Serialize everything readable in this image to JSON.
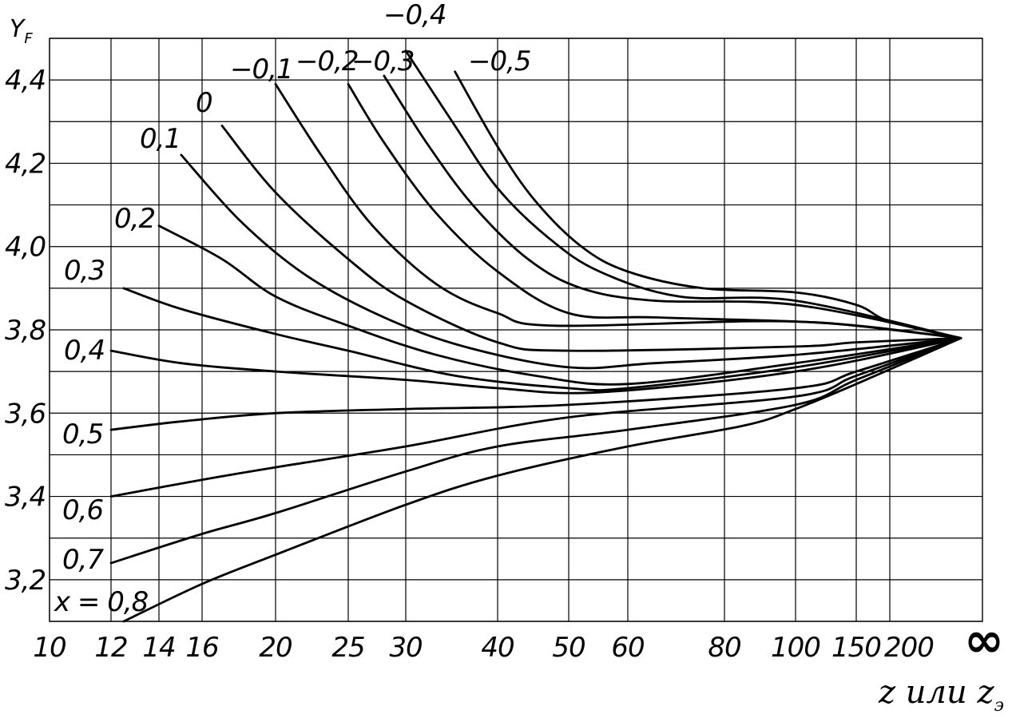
{
  "chart_data": {
    "type": "line",
    "title": "",
    "ylabel": "Y",
    "ylabel_sub": "F",
    "xlabel": "z или z",
    "xlabel_sub": "э",
    "x_scale": "log",
    "x_ticks": [
      "10",
      "12",
      "14",
      "16",
      "20",
      "25",
      "30",
      "40",
      "50",
      "60",
      "80",
      "100",
      "150",
      "200",
      "∞"
    ],
    "y_ticks": [
      "3,2",
      "3,4",
      "3,6",
      "3,8",
      "4,0",
      "4,2",
      "4,4"
    ],
    "ylim": [
      3.1,
      4.5
    ],
    "grid": true,
    "convergence_point": {
      "x": "∞",
      "y": 3.78
    },
    "series_prefix": "x = ",
    "series": [
      {
        "name": "−0,5",
        "points": [
          [
            35,
            4.42
          ],
          [
            40,
            4.24
          ],
          [
            45,
            4.11
          ],
          [
            52,
            4.0
          ],
          [
            60,
            3.94
          ],
          [
            75,
            3.9
          ],
          [
            100,
            3.89
          ],
          [
            150,
            3.86
          ],
          [
            200,
            3.82
          ]
        ]
      },
      {
        "name": "−0,4",
        "points": [
          [
            30,
            4.47
          ],
          [
            35,
            4.29
          ],
          [
            40,
            4.14
          ],
          [
            47,
            4.02
          ],
          [
            55,
            3.94
          ],
          [
            70,
            3.88
          ],
          [
            100,
            3.87
          ]
        ]
      },
      {
        "name": "−0,3",
        "points": [
          [
            28,
            4.41
          ],
          [
            32,
            4.25
          ],
          [
            37,
            4.1
          ],
          [
            44,
            3.97
          ],
          [
            52,
            3.9
          ],
          [
            65,
            3.87
          ],
          [
            100,
            3.86
          ]
        ]
      },
      {
        "name": "−0,2",
        "points": [
          [
            25,
            4.39
          ],
          [
            28,
            4.25
          ],
          [
            33,
            4.08
          ],
          [
            40,
            3.94
          ],
          [
            50,
            3.84
          ],
          [
            65,
            3.83
          ],
          [
            100,
            3.82
          ],
          [
            150,
            3.81
          ]
        ]
      },
      {
        "name": "−0,1",
        "points": [
          [
            20,
            4.39
          ],
          [
            23,
            4.22
          ],
          [
            27,
            4.05
          ],
          [
            33,
            3.91
          ],
          [
            40,
            3.84
          ],
          [
            48,
            3.81
          ],
          [
            100,
            3.82
          ]
        ]
      },
      {
        "name": "0",
        "points": [
          [
            17,
            4.29
          ],
          [
            20,
            4.13
          ],
          [
            25,
            3.97
          ],
          [
            30,
            3.87
          ],
          [
            40,
            3.77
          ],
          [
            50,
            3.75
          ],
          [
            100,
            3.76
          ],
          [
            150,
            3.77
          ]
        ]
      },
      {
        "name": "0,1",
        "points": [
          [
            15,
            4.22
          ],
          [
            18,
            4.06
          ],
          [
            22,
            3.93
          ],
          [
            28,
            3.83
          ],
          [
            36,
            3.76
          ],
          [
            50,
            3.71
          ],
          [
            65,
            3.72
          ],
          [
            100,
            3.74
          ]
        ]
      },
      {
        "name": "0,2",
        "points": [
          [
            14,
            4.05
          ],
          [
            17,
            3.97
          ],
          [
            20,
            3.88
          ],
          [
            25,
            3.81
          ],
          [
            33,
            3.74
          ],
          [
            45,
            3.69
          ],
          [
            60,
            3.67
          ],
          [
            100,
            3.72
          ]
        ]
      },
      {
        "name": "0,3",
        "points": [
          [
            12.5,
            3.9
          ],
          [
            15,
            3.85
          ],
          [
            20,
            3.79
          ],
          [
            25,
            3.75
          ],
          [
            35,
            3.69
          ],
          [
            50,
            3.66
          ],
          [
            60,
            3.66
          ],
          [
            100,
            3.71
          ]
        ]
      },
      {
        "name": "0,4",
        "points": [
          [
            12,
            3.75
          ],
          [
            15,
            3.72
          ],
          [
            20,
            3.7
          ],
          [
            30,
            3.68
          ],
          [
            40,
            3.66
          ],
          [
            55,
            3.65
          ],
          [
            100,
            3.7
          ]
        ]
      },
      {
        "name": "0,5",
        "points": [
          [
            12,
            3.56
          ],
          [
            15,
            3.58
          ],
          [
            20,
            3.6
          ],
          [
            30,
            3.61
          ],
          [
            50,
            3.62
          ],
          [
            100,
            3.66
          ],
          [
            150,
            3.7
          ]
        ]
      },
      {
        "name": "0,6",
        "points": [
          [
            12,
            3.4
          ],
          [
            16,
            3.44
          ],
          [
            20,
            3.47
          ],
          [
            30,
            3.52
          ],
          [
            50,
            3.59
          ],
          [
            100,
            3.64
          ],
          [
            150,
            3.69
          ]
        ]
      },
      {
        "name": "0,7",
        "points": [
          [
            12,
            3.24
          ],
          [
            16,
            3.31
          ],
          [
            20,
            3.36
          ],
          [
            30,
            3.46
          ],
          [
            40,
            3.52
          ],
          [
            60,
            3.56
          ],
          [
            100,
            3.62
          ],
          [
            150,
            3.68
          ]
        ]
      },
      {
        "name": "x = 0,8",
        "points": [
          [
            12.5,
            3.1
          ],
          [
            16,
            3.19
          ],
          [
            20,
            3.26
          ],
          [
            30,
            3.38
          ],
          [
            40,
            3.45
          ],
          [
            60,
            3.52
          ],
          [
            85,
            3.57
          ],
          [
            100,
            3.61
          ],
          [
            150,
            3.67
          ]
        ]
      }
    ]
  }
}
